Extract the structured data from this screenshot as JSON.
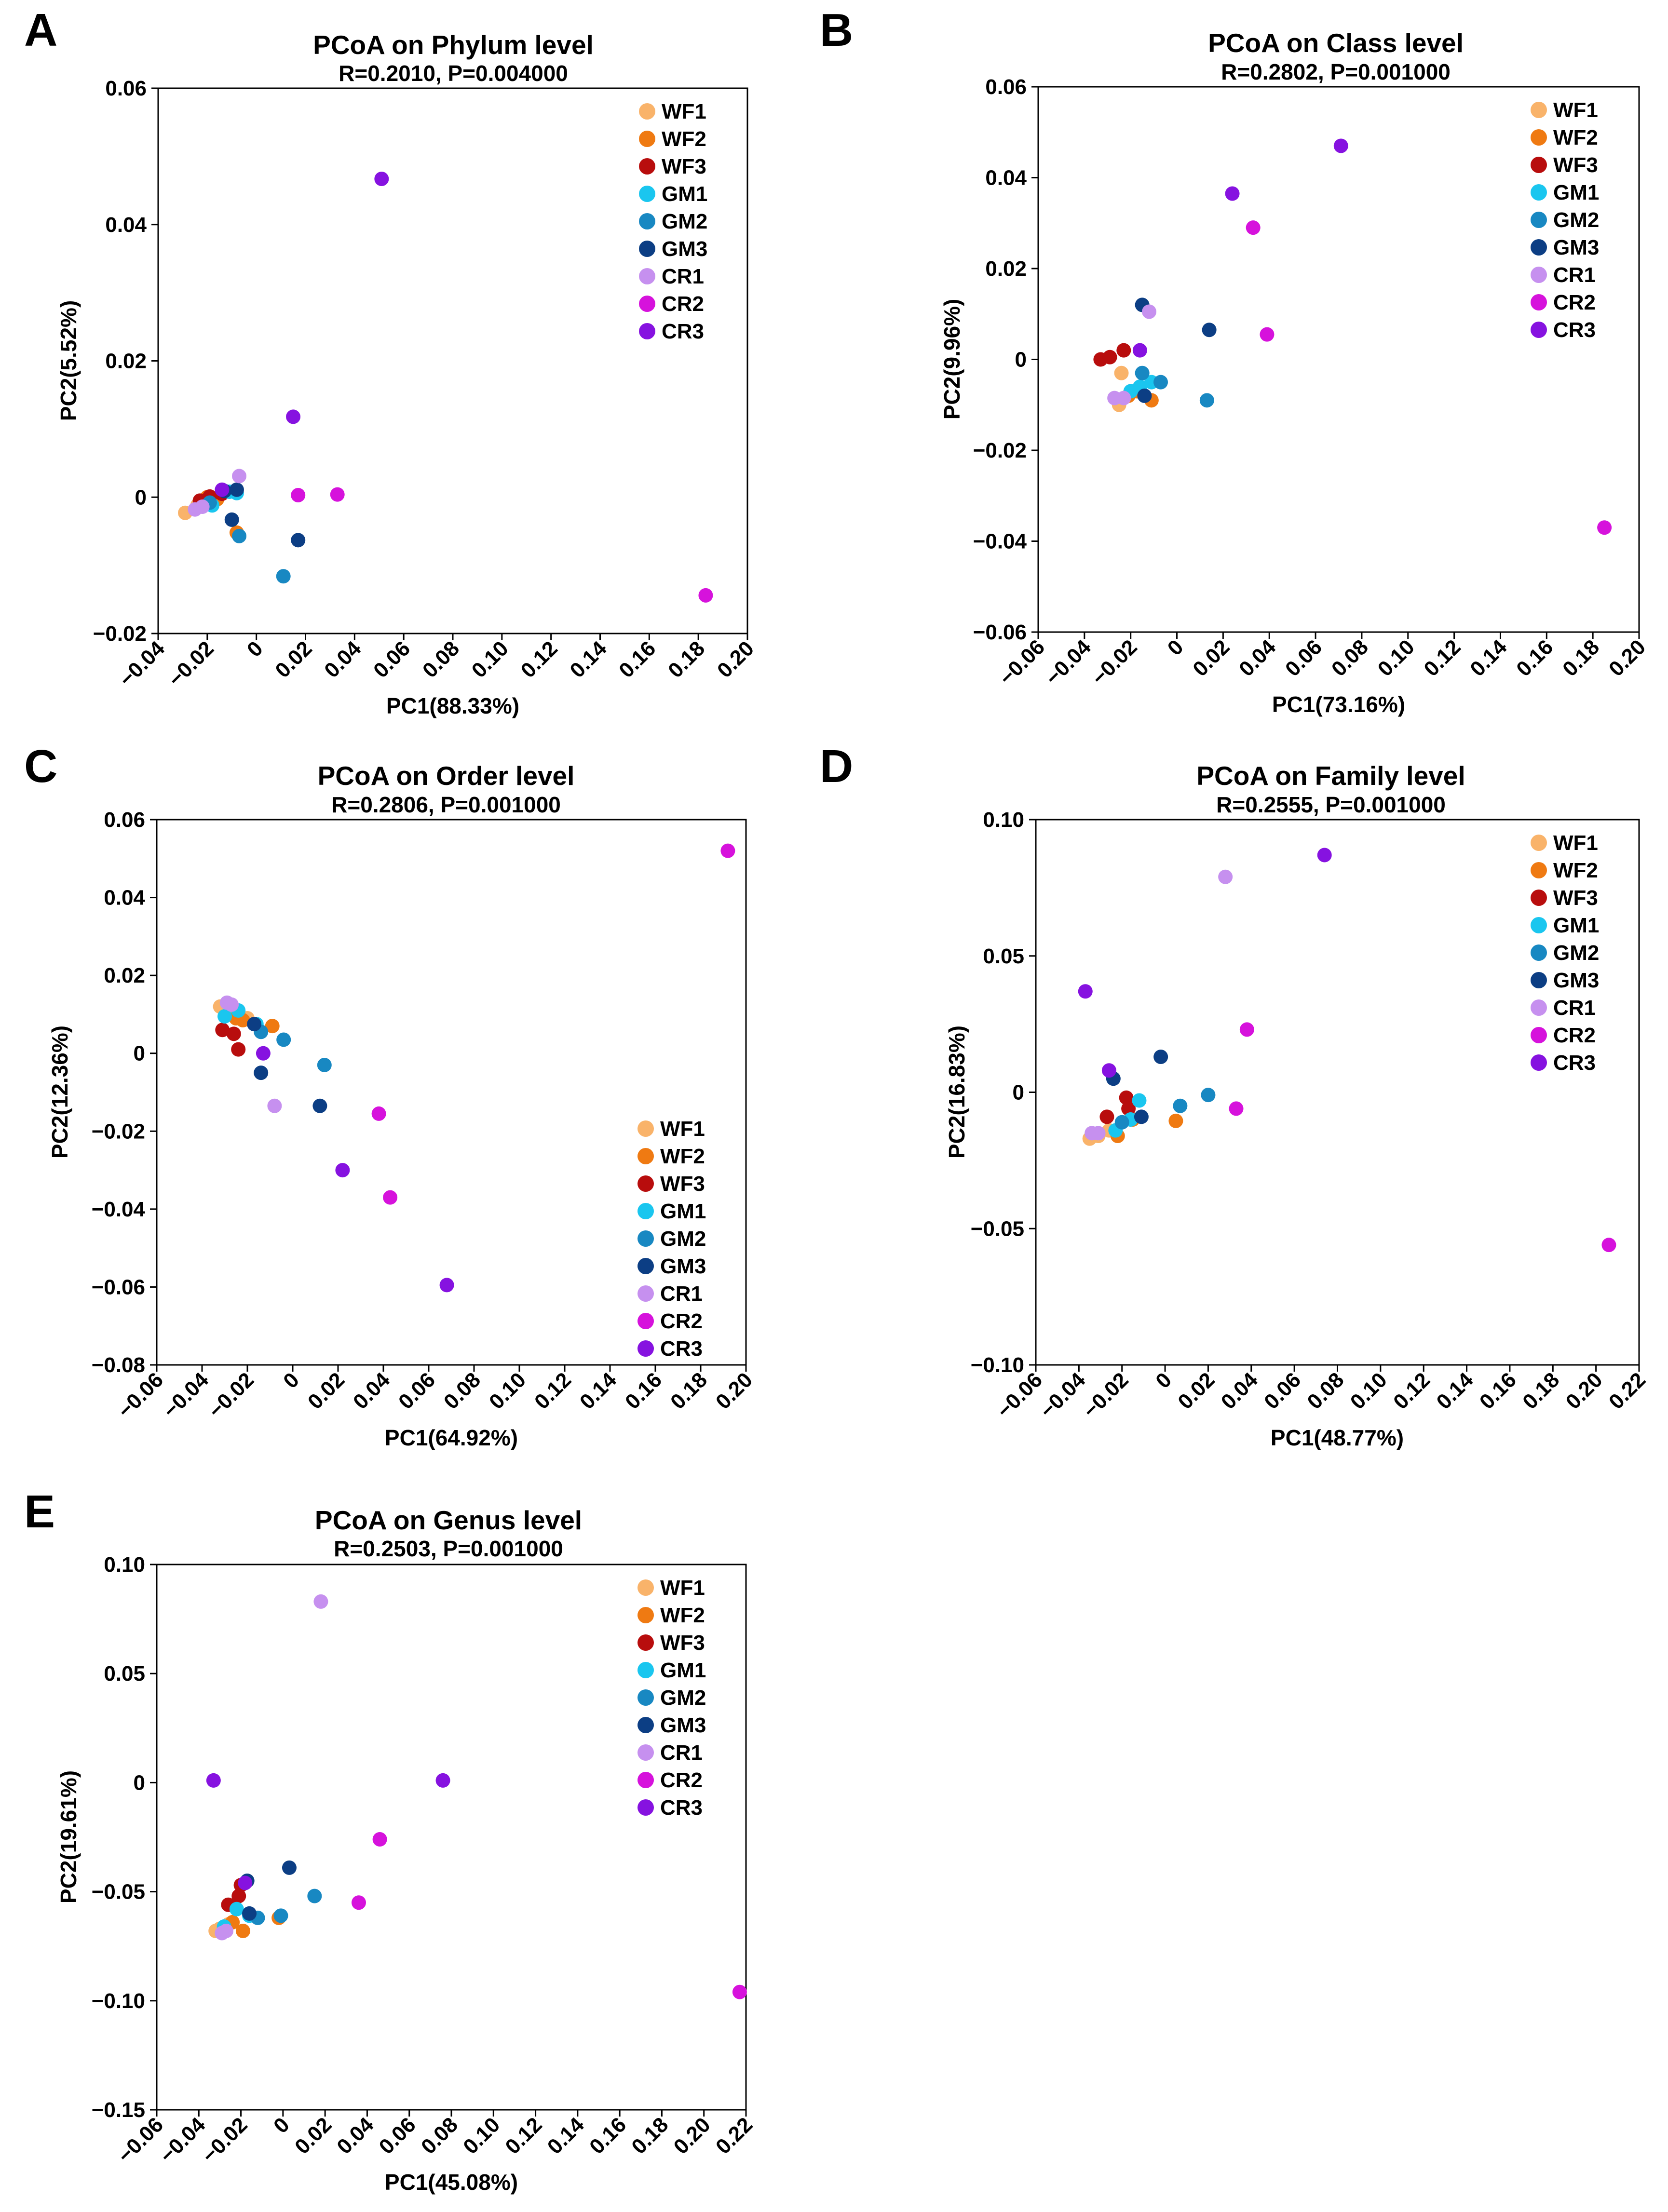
{
  "groups": [
    {
      "name": "WF1",
      "color": "#f9b36a"
    },
    {
      "name": "WF2",
      "color": "#ef7a12"
    },
    {
      "name": "WF3",
      "color": "#b80d0d"
    },
    {
      "name": "GM1",
      "color": "#1ac6ef"
    },
    {
      "name": "GM2",
      "color": "#1888c2"
    },
    {
      "name": "GM3",
      "color": "#0c3e84"
    },
    {
      "name": "CR1",
      "color": "#c690ef"
    },
    {
      "name": "CR2",
      "color": "#d612dc"
    },
    {
      "name": "CR3",
      "color": "#8612e0"
    }
  ],
  "chart_data": [
    {
      "panel": "A",
      "type": "scatter",
      "title": "PCoA on Phylum level",
      "subtitle": "R=0.2010, P=0.004000",
      "xlabel": "PC1(88.33%)",
      "ylabel": "PC2(5.52%)",
      "xlim": [
        -0.04,
        0.2
      ],
      "ylim": [
        -0.02,
        0.06
      ],
      "xticks": [
        -0.04,
        -0.02,
        0,
        0.02,
        0.04,
        0.06,
        0.08,
        0.1,
        0.12,
        0.14,
        0.16,
        0.18,
        0.2
      ],
      "xtick_labels": [
        "−0.04",
        "−0.02",
        "0",
        "0.02",
        "0.04",
        "0.06",
        "0.08",
        "0.10",
        "0.12",
        "0.14",
        "0.16",
        "0.18",
        "0.20"
      ],
      "yticks": [
        -0.02,
        0,
        0.02,
        0.04,
        0.06
      ],
      "ytick_labels": [
        "−0.02",
        "0",
        "0.02",
        "0.04",
        "0.06"
      ],
      "legend": "top-right",
      "series": [
        {
          "name": "WF1",
          "points": [
            [
              -0.029,
              -0.0023
            ],
            [
              -0.024,
              -0.0012
            ],
            [
              -0.018,
              -0.0005
            ]
          ]
        },
        {
          "name": "WF2",
          "points": [
            [
              -0.02,
              0.0
            ],
            [
              -0.016,
              -0.0003
            ],
            [
              -0.008,
              -0.0052
            ]
          ]
        },
        {
          "name": "WF3",
          "points": [
            [
              -0.023,
              -0.0005
            ],
            [
              -0.019,
              0.0001
            ],
            [
              -0.014,
              0.0005
            ]
          ]
        },
        {
          "name": "GM1",
          "points": [
            [
              -0.018,
              -0.0012
            ],
            [
              -0.011,
              0.0008
            ],
            [
              -0.008,
              0.0006
            ]
          ]
        },
        {
          "name": "GM2",
          "points": [
            [
              -0.019,
              -0.0008
            ],
            [
              -0.007,
              -0.0057
            ],
            [
              0.011,
              -0.0116
            ]
          ]
        },
        {
          "name": "GM3",
          "points": [
            [
              -0.01,
              -0.0033
            ],
            [
              -0.013,
              0.0009
            ],
            [
              -0.008,
              0.0011
            ],
            [
              0.017,
              -0.0063
            ]
          ]
        },
        {
          "name": "CR1",
          "points": [
            [
              -0.025,
              -0.0018
            ],
            [
              -0.022,
              -0.0014
            ],
            [
              -0.007,
              0.0031
            ]
          ]
        },
        {
          "name": "CR2",
          "points": [
            [
              0.017,
              0.0003
            ],
            [
              0.033,
              0.0004
            ],
            [
              0.183,
              -0.0144
            ]
          ]
        },
        {
          "name": "CR3",
          "points": [
            [
              0.015,
              0.0118
            ],
            [
              0.051,
              0.0467
            ],
            [
              -0.014,
              0.0011
            ]
          ]
        }
      ]
    },
    {
      "panel": "B",
      "type": "scatter",
      "title": "PCoA on Class level",
      "subtitle": "R=0.2802, P=0.001000",
      "xlabel": "PC1(73.16%)",
      "ylabel": "PC2(9.96%)",
      "xlim": [
        -0.06,
        0.2
      ],
      "ylim": [
        -0.06,
        0.06
      ],
      "xticks": [
        -0.06,
        -0.04,
        -0.02,
        0,
        0.02,
        0.04,
        0.06,
        0.08,
        0.1,
        0.12,
        0.14,
        0.16,
        0.18,
        0.2
      ],
      "xtick_labels": [
        "−0.06",
        "−0.04",
        "−0.02",
        "0",
        "0.02",
        "0.04",
        "0.06",
        "0.08",
        "0.10",
        "0.12",
        "0.14",
        "0.16",
        "0.18",
        "0.20"
      ],
      "yticks": [
        -0.06,
        -0.04,
        -0.02,
        0,
        0.02,
        0.04,
        0.06
      ],
      "ytick_labels": [
        "−0.06",
        "−0.04",
        "−0.02",
        "0",
        "0.02",
        "0.04",
        "0.06"
      ],
      "legend": "top-right",
      "series": [
        {
          "name": "WF1",
          "points": [
            [
              -0.025,
              -0.01
            ],
            [
              -0.024,
              -0.003
            ],
            [
              -0.018,
              -0.007
            ]
          ]
        },
        {
          "name": "WF2",
          "points": [
            [
              -0.021,
              -0.008
            ],
            [
              -0.017,
              -0.007
            ],
            [
              -0.011,
              -0.009
            ]
          ]
        },
        {
          "name": "WF3",
          "points": [
            [
              -0.033,
              0.0
            ],
            [
              -0.029,
              0.0005
            ],
            [
              -0.023,
              0.002
            ]
          ]
        },
        {
          "name": "GM1",
          "points": [
            [
              -0.02,
              -0.007
            ],
            [
              -0.016,
              -0.006
            ],
            [
              -0.011,
              -0.005
            ]
          ]
        },
        {
          "name": "GM2",
          "points": [
            [
              -0.015,
              -0.003
            ],
            [
              -0.007,
              -0.005
            ],
            [
              0.013,
              -0.009
            ]
          ]
        },
        {
          "name": "GM3",
          "points": [
            [
              -0.015,
              0.012
            ],
            [
              -0.014,
              -0.008
            ],
            [
              0.014,
              0.0065
            ]
          ]
        },
        {
          "name": "CR1",
          "points": [
            [
              -0.027,
              -0.0085
            ],
            [
              -0.023,
              -0.0085
            ],
            [
              -0.012,
              0.0105
            ]
          ]
        },
        {
          "name": "CR2",
          "points": [
            [
              0.033,
              0.029
            ],
            [
              0.039,
              0.0055
            ],
            [
              0.185,
              -0.037
            ]
          ]
        },
        {
          "name": "CR3",
          "points": [
            [
              0.024,
              0.0365
            ],
            [
              0.071,
              0.047
            ],
            [
              -0.016,
              0.002
            ]
          ]
        }
      ]
    },
    {
      "panel": "C",
      "type": "scatter",
      "title": "PCoA on Order level",
      "subtitle": "R=0.2806, P=0.001000",
      "xlabel": "PC1(64.92%)",
      "ylabel": "PC2(12.36%)",
      "xlim": [
        -0.06,
        0.2
      ],
      "ylim": [
        -0.08,
        0.06
      ],
      "xticks": [
        -0.06,
        -0.04,
        -0.02,
        0,
        0.02,
        0.04,
        0.06,
        0.08,
        0.1,
        0.12,
        0.14,
        0.16,
        0.18,
        0.2
      ],
      "xtick_labels": [
        "−0.06",
        "−0.04",
        "−0.02",
        "0",
        "0.02",
        "0.04",
        "0.06",
        "0.08",
        "0.10",
        "0.12",
        "0.14",
        "0.16",
        "0.18",
        "0.20"
      ],
      "yticks": [
        -0.08,
        -0.06,
        -0.04,
        -0.02,
        0,
        0.02,
        0.04,
        0.06
      ],
      "ytick_labels": [
        "−0.08",
        "−0.06",
        "−0.04",
        "−0.02",
        "0",
        "0.02",
        "0.04",
        "0.06"
      ],
      "legend": "bottom-right",
      "series": [
        {
          "name": "WF1",
          "points": [
            [
              -0.032,
              0.012
            ],
            [
              -0.029,
              0.0115
            ],
            [
              -0.02,
              0.009
            ]
          ]
        },
        {
          "name": "WF2",
          "points": [
            [
              -0.025,
              0.009
            ],
            [
              -0.022,
              0.0085
            ],
            [
              -0.009,
              0.007
            ]
          ]
        },
        {
          "name": "WF3",
          "points": [
            [
              -0.031,
              0.006
            ],
            [
              -0.026,
              0.005
            ],
            [
              -0.024,
              0.001
            ]
          ]
        },
        {
          "name": "GM1",
          "points": [
            [
              -0.03,
              0.0095
            ],
            [
              -0.024,
              0.011
            ],
            [
              -0.016,
              0.0075
            ]
          ]
        },
        {
          "name": "GM2",
          "points": [
            [
              -0.014,
              0.0055
            ],
            [
              -0.004,
              0.0035
            ],
            [
              0.014,
              -0.003
            ]
          ]
        },
        {
          "name": "GM3",
          "points": [
            [
              -0.017,
              0.0075
            ],
            [
              -0.014,
              -0.005
            ],
            [
              0.012,
              -0.0135
            ]
          ]
        },
        {
          "name": "CR1",
          "points": [
            [
              -0.029,
              0.013
            ],
            [
              -0.027,
              0.0125
            ],
            [
              -0.008,
              -0.0135
            ]
          ]
        },
        {
          "name": "CR2",
          "points": [
            [
              0.038,
              -0.0155
            ],
            [
              0.043,
              -0.037
            ],
            [
              0.192,
              0.052
            ]
          ]
        },
        {
          "name": "CR3",
          "points": [
            [
              0.022,
              -0.03
            ],
            [
              0.068,
              -0.0595
            ],
            [
              -0.013,
              0.0
            ]
          ]
        }
      ]
    },
    {
      "panel": "D",
      "type": "scatter",
      "title": "PCoA on Family level",
      "subtitle": "R=0.2555, P=0.001000",
      "xlabel": "PC1(48.77%)",
      "ylabel": "PC2(16.83%)",
      "xlim": [
        -0.06,
        0.22
      ],
      "ylim": [
        -0.1,
        0.1
      ],
      "xticks": [
        -0.06,
        -0.04,
        -0.02,
        0,
        0.02,
        0.04,
        0.06,
        0.08,
        0.1,
        0.12,
        0.14,
        0.16,
        0.18,
        0.2,
        0.22
      ],
      "xtick_labels": [
        "−0.06",
        "−0.04",
        "−0.02",
        "0",
        "0.02",
        "0.04",
        "0.06",
        "0.08",
        "0.10",
        "0.12",
        "0.14",
        "0.16",
        "0.18",
        "0.20",
        "0.22"
      ],
      "yticks": [
        -0.1,
        -0.05,
        0,
        0.05,
        0.1
      ],
      "ytick_labels": [
        "−0.10",
        "−0.05",
        "0",
        "0.05",
        "0.10"
      ],
      "legend": "top-right",
      "series": [
        {
          "name": "WF1",
          "points": [
            [
              -0.035,
              -0.017
            ],
            [
              -0.031,
              -0.016
            ],
            [
              -0.026,
              -0.014
            ]
          ]
        },
        {
          "name": "WF2",
          "points": [
            [
              -0.022,
              -0.016
            ],
            [
              -0.015,
              -0.01
            ],
            [
              0.005,
              -0.0105
            ]
          ]
        },
        {
          "name": "WF3",
          "points": [
            [
              -0.027,
              -0.009
            ],
            [
              -0.018,
              -0.002
            ],
            [
              -0.017,
              -0.006
            ]
          ]
        },
        {
          "name": "GM1",
          "points": [
            [
              -0.023,
              -0.014
            ],
            [
              -0.016,
              -0.01
            ],
            [
              -0.012,
              -0.003
            ]
          ]
        },
        {
          "name": "GM2",
          "points": [
            [
              -0.02,
              -0.011
            ],
            [
              0.007,
              -0.005
            ],
            [
              0.02,
              -0.001
            ]
          ]
        },
        {
          "name": "GM3",
          "points": [
            [
              -0.024,
              0.005
            ],
            [
              -0.011,
              -0.009
            ],
            [
              -0.002,
              0.013
            ]
          ]
        },
        {
          "name": "CR1",
          "points": [
            [
              -0.034,
              -0.015
            ],
            [
              -0.031,
              -0.015
            ],
            [
              0.028,
              0.079
            ]
          ]
        },
        {
          "name": "CR2",
          "points": [
            [
              0.033,
              -0.006
            ],
            [
              0.038,
              0.023
            ],
            [
              0.206,
              -0.056
            ]
          ]
        },
        {
          "name": "CR3",
          "points": [
            [
              -0.037,
              0.037
            ],
            [
              -0.026,
              0.008
            ],
            [
              0.074,
              0.087
            ]
          ]
        }
      ]
    },
    {
      "panel": "E",
      "type": "scatter",
      "title": "PCoA on Genus level",
      "subtitle": "R=0.2503, P=0.001000",
      "xlabel": "PC1(45.08%)",
      "ylabel": "PC2(19.61%)",
      "xlim": [
        -0.06,
        0.22
      ],
      "ylim": [
        -0.15,
        0.1
      ],
      "xticks": [
        -0.06,
        -0.04,
        -0.02,
        0,
        0.02,
        0.04,
        0.06,
        0.08,
        0.1,
        0.12,
        0.14,
        0.16,
        0.18,
        0.2,
        0.22
      ],
      "xtick_labels": [
        "−0.06",
        "−0.04",
        "−0.02",
        "0",
        "0.02",
        "0.04",
        "0.06",
        "0.08",
        "0.10",
        "0.12",
        "0.14",
        "0.16",
        "0.18",
        "0.20",
        "0.22"
      ],
      "yticks": [
        -0.15,
        -0.1,
        -0.05,
        0,
        0.05,
        0.1
      ],
      "ytick_labels": [
        "−0.15",
        "−0.10",
        "−0.05",
        "0",
        "0.05",
        "0.10"
      ],
      "legend": "top-right",
      "series": [
        {
          "name": "WF1",
          "points": [
            [
              -0.032,
              -0.068
            ],
            [
              -0.03,
              -0.067
            ],
            [
              -0.026,
              -0.065
            ]
          ]
        },
        {
          "name": "WF2",
          "points": [
            [
              -0.024,
              -0.064
            ],
            [
              -0.019,
              -0.068
            ],
            [
              -0.002,
              -0.062
            ]
          ]
        },
        {
          "name": "WF3",
          "points": [
            [
              -0.026,
              -0.056
            ],
            [
              -0.021,
              -0.052
            ],
            [
              -0.02,
              -0.047
            ]
          ]
        },
        {
          "name": "GM1",
          "points": [
            [
              -0.028,
              -0.066
            ],
            [
              -0.022,
              -0.058
            ],
            [
              -0.016,
              -0.061
            ]
          ]
        },
        {
          "name": "GM2",
          "points": [
            [
              -0.012,
              -0.062
            ],
            [
              -0.001,
              -0.061
            ],
            [
              0.015,
              -0.052
            ]
          ]
        },
        {
          "name": "GM3",
          "points": [
            [
              -0.017,
              -0.045
            ],
            [
              -0.016,
              -0.06
            ],
            [
              0.003,
              -0.039
            ]
          ]
        },
        {
          "name": "CR1",
          "points": [
            [
              -0.029,
              -0.069
            ],
            [
              -0.027,
              -0.068
            ],
            [
              0.018,
              0.083
            ]
          ]
        },
        {
          "name": "CR2",
          "points": [
            [
              0.036,
              -0.055
            ],
            [
              0.046,
              -0.026
            ],
            [
              0.217,
              -0.096
            ]
          ]
        },
        {
          "name": "CR3",
          "points": [
            [
              -0.033,
              0.001
            ],
            [
              -0.018,
              -0.046
            ],
            [
              0.076,
              0.001
            ]
          ]
        }
      ]
    }
  ]
}
